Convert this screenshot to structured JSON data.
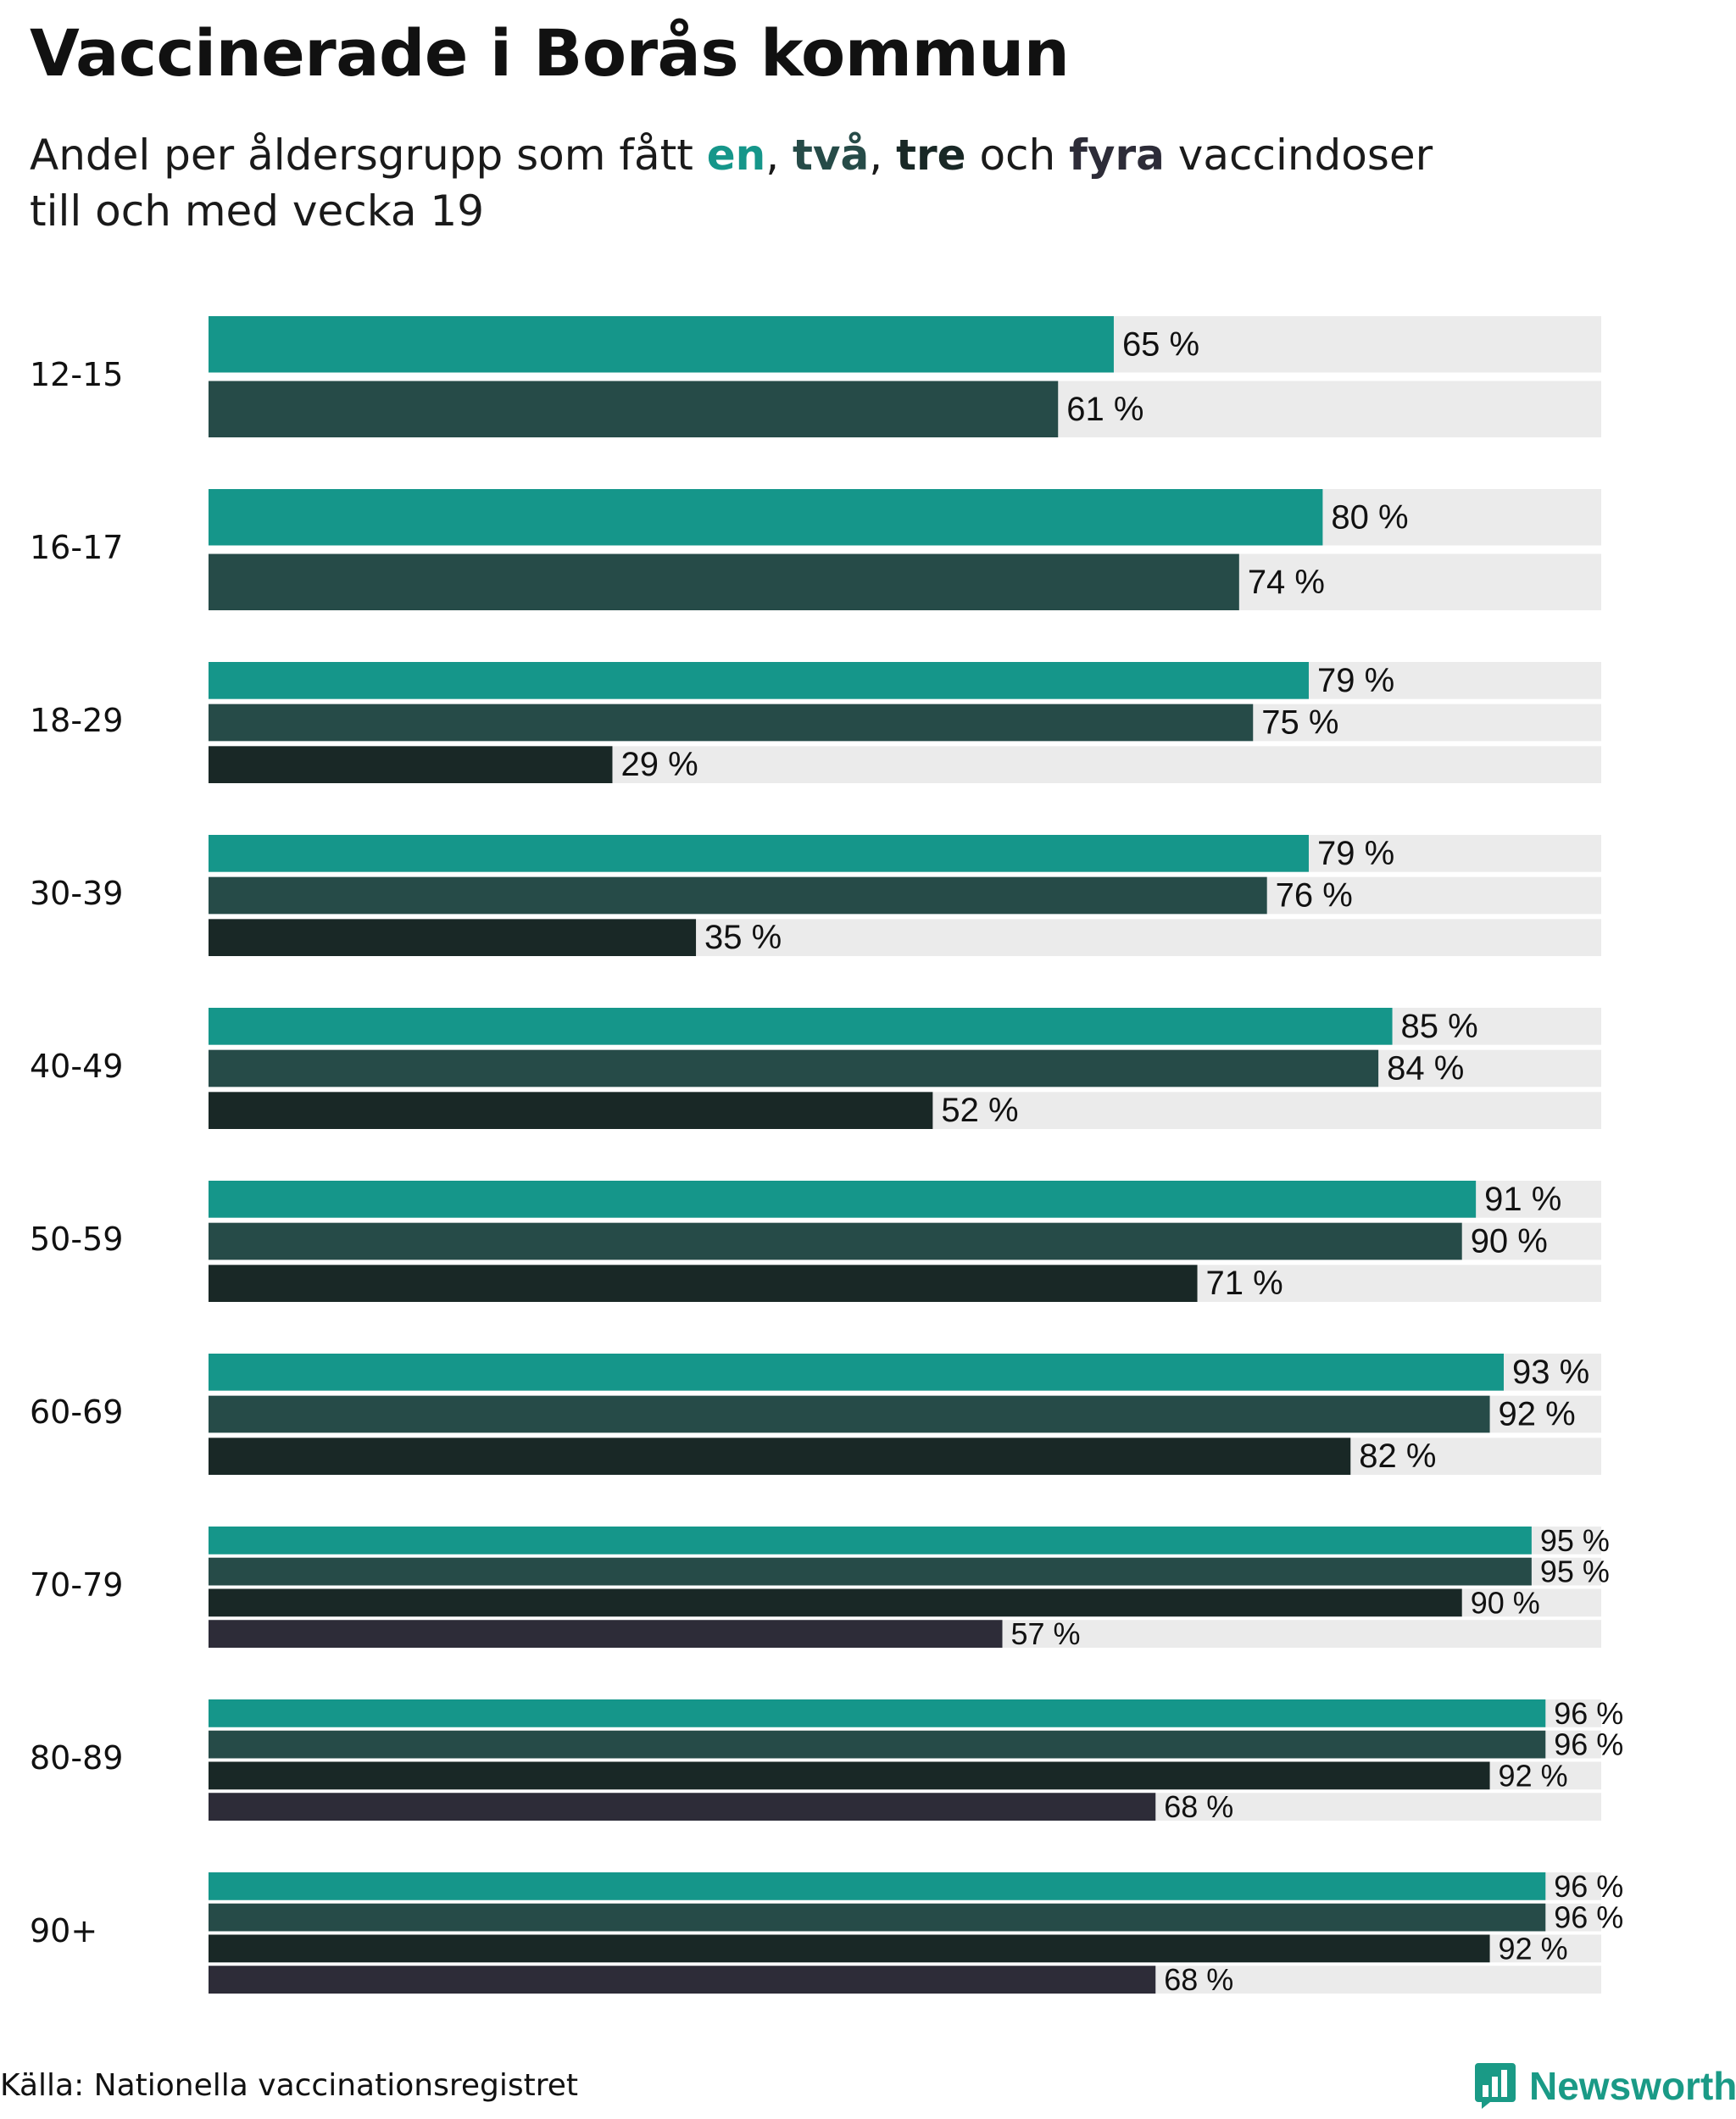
{
  "title": "Vaccinerade i Borås kommun",
  "subtitle": {
    "pre": "Andel per åldersgrupp som fått ",
    "en": "en",
    "comma1": ", ",
    "tva": "två",
    "comma2": ", ",
    "tre": "tre",
    "och": " och ",
    "fyra": "fyra",
    "post": " vaccindoser",
    "line2": "till och med vecka 19"
  },
  "colors": {
    "dose1": "#15968a",
    "dose2": "#264b48",
    "dose3": "#192826",
    "dose4": "#2d2c38",
    "track": "#ebebeb",
    "logo": "#1a9a86"
  },
  "footer": {
    "source": "Källa: Nationella vaccinationsregistret",
    "logo_text": "Newsworthy",
    "logo_icon": "bar-chart-icon"
  },
  "chart_data": {
    "type": "bar",
    "orientation": "horizontal",
    "xlim": [
      0,
      100
    ],
    "value_suffix": " %",
    "categories": [
      "12-15",
      "16-17",
      "18-29",
      "30-39",
      "40-49",
      "50-59",
      "60-69",
      "70-79",
      "80-89",
      "90+"
    ],
    "series": [
      {
        "values": [
          65,
          80,
          79,
          79,
          85,
          91,
          93,
          95,
          96,
          96
        ]
      },
      {
        "values": [
          61,
          74,
          75,
          76,
          84,
          90,
          92,
          95,
          96,
          96
        ]
      },
      {
        "values": [
          null,
          null,
          29,
          35,
          52,
          71,
          82,
          90,
          92,
          92
        ]
      },
      {
        "values": [
          null,
          null,
          null,
          null,
          null,
          null,
          null,
          57,
          68,
          68
        ]
      }
    ]
  }
}
